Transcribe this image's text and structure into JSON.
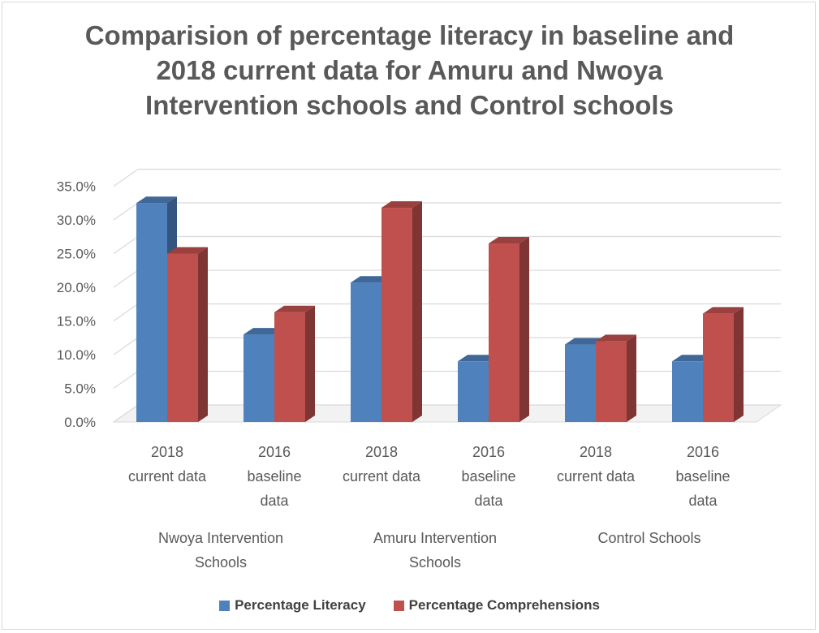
{
  "chart_data": {
    "type": "bar",
    "title_lines": [
      "Comparision of percentage literacy in baseline and",
      "2018 current data for Amuru and Nwoya",
      "Intervention schools and Control schools"
    ],
    "categories": [
      [
        "2018",
        "current data"
      ],
      [
        "2016",
        "baseline",
        "data"
      ],
      [
        "2018",
        "current data"
      ],
      [
        "2016",
        "baseline",
        "data"
      ],
      [
        "2018",
        "current data"
      ],
      [
        "2016",
        "baseline",
        "data"
      ]
    ],
    "groups": [
      [
        "Nwoya Intervention",
        "Schools"
      ],
      [
        "Amuru Intervention",
        "Schools"
      ],
      [
        "Control Schools"
      ]
    ],
    "series": [
      {
        "name": "Percentage Literacy",
        "color": "#4f81bd",
        "values": [
          32.5,
          13.0,
          20.7,
          9.0,
          11.5,
          9.0
        ]
      },
      {
        "name": "Percentage Comprehensions",
        "color": "#c0504d",
        "values": [
          25.0,
          16.3,
          31.8,
          26.5,
          12.0,
          16.1
        ]
      }
    ],
    "yticks": [
      "0.0%",
      "5.0%",
      "10.0%",
      "15.0%",
      "20.0%",
      "25.0%",
      "30.0%",
      "35.0%"
    ],
    "ylim": [
      0,
      35
    ],
    "grid": true,
    "legend_position": "bottom"
  }
}
